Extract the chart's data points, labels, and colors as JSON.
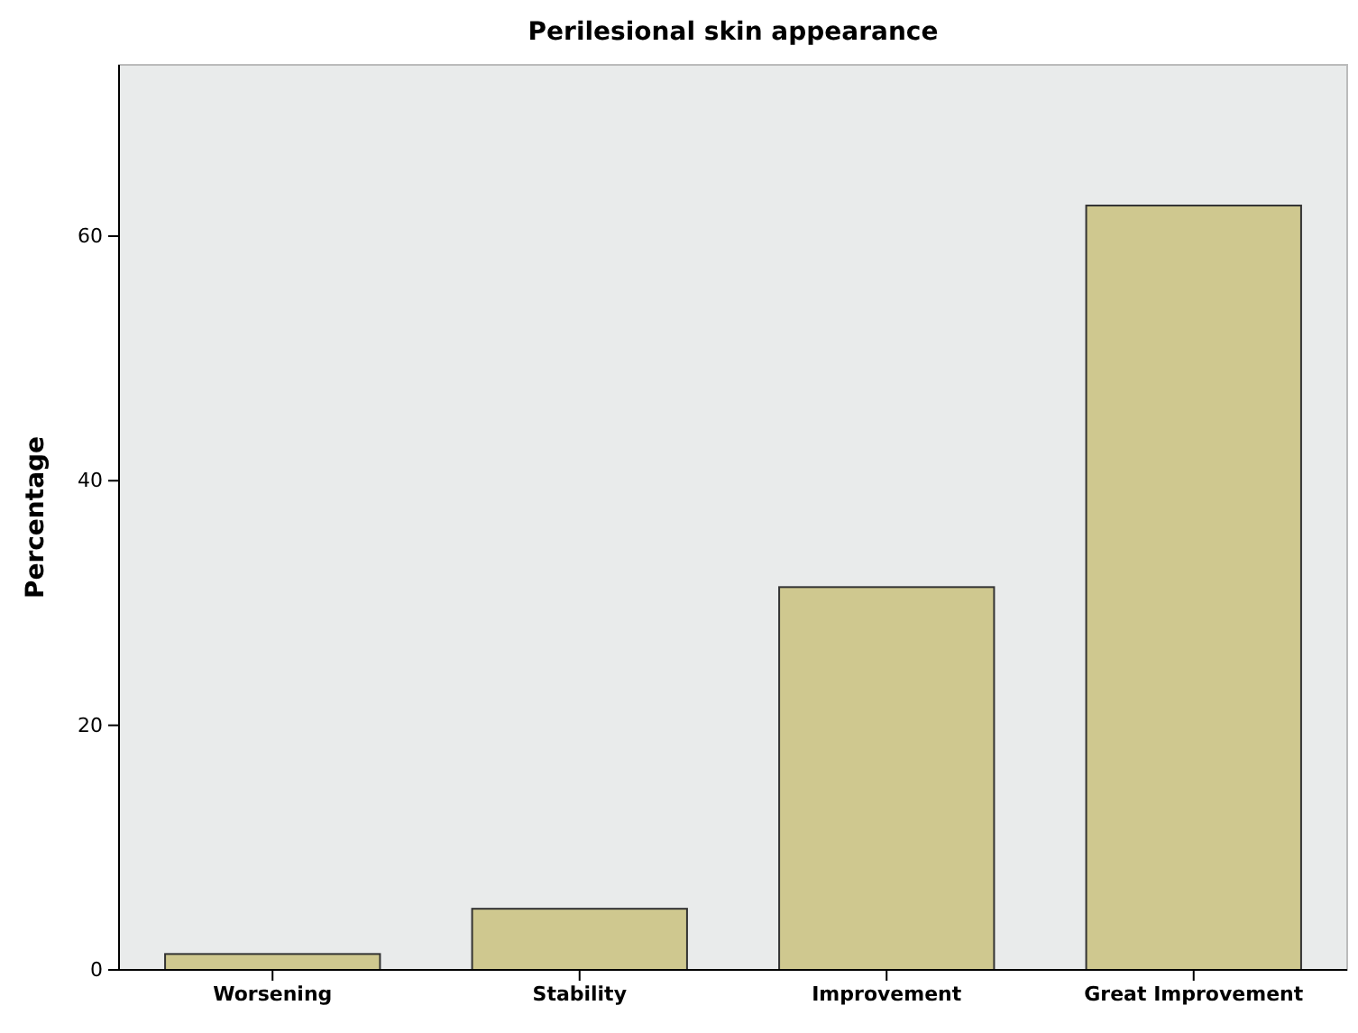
{
  "chart_data": {
    "type": "bar",
    "title": "Perilesional skin appearance",
    "ylabel": "Percentage",
    "categories": [
      "Worsening",
      "Stability",
      "Improvement",
      "Great Improvement"
    ],
    "values": [
      1.3,
      5,
      31.3,
      62.5
    ],
    "color": "#cfc88f",
    "ylim": [
      0,
      74
    ],
    "yticks": [
      0,
      20,
      40,
      60
    ],
    "grid": false
  }
}
